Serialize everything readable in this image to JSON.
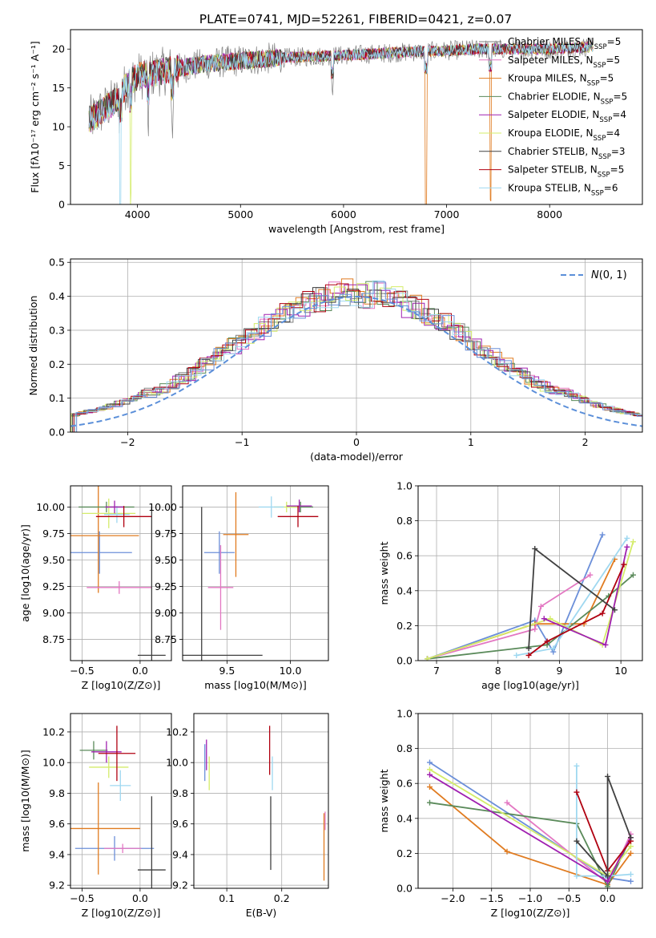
{
  "figure": {
    "title": "PLATE=0741, MJD=52261, FIBERID=0421, z=0.07"
  },
  "chart_data": [
    {
      "id": "spectrum",
      "type": "line",
      "xlabel": "wavelength [Angstrom, rest frame]",
      "ylabel_html": "Flux [fλ10⁻¹⁷ erg cm⁻² s⁻¹ A⁻¹]",
      "xlim": [
        3350,
        8900
      ],
      "ylim": [
        0,
        22.5
      ],
      "xticks": [
        4000,
        5000,
        6000,
        7000,
        8000
      ],
      "yticks": [
        0,
        5,
        10,
        15,
        20
      ],
      "grid": false,
      "legend_position": "top-right",
      "legend": [
        {
          "name": "Chabrier MILES, N",
          "sub": "SSP",
          "tail": "=5",
          "color": "#808080"
        },
        {
          "name": "Salpeter MILES, N",
          "sub": "SSP",
          "tail": "=5",
          "color": "#e377c2"
        },
        {
          "name": "Kroupa MILES, N",
          "sub": "SSP",
          "tail": "=5",
          "color": "#e07b20"
        },
        {
          "name": "Chabrier ELODIE, N",
          "sub": "SSP",
          "tail": "=5",
          "color": "#5a8a5a"
        },
        {
          "name": "Salpeter ELODIE, N",
          "sub": "SSP",
          "tail": "=4",
          "color": "#a020b0"
        },
        {
          "name": "Kroupa ELODIE, N",
          "sub": "SSP",
          "tail": "=4",
          "color": "#d4ec6a"
        },
        {
          "name": "Chabrier STELIB, N",
          "sub": "SSP",
          "tail": "=3",
          "color": "#404040"
        },
        {
          "name": "Salpeter STELIB, N",
          "sub": "SSP",
          "tail": "=5",
          "color": "#b00010"
        },
        {
          "name": "Kroupa STELIB, N",
          "sub": "SSP",
          "tail": "=6",
          "color": "#9fd8f0"
        }
      ],
      "continuum": {
        "x": [
          3550,
          3700,
          3800,
          3900,
          4000,
          4200,
          4400,
          4600,
          4800,
          5000,
          5300,
          5600,
          6000,
          6300,
          6600,
          7000,
          7300,
          7500,
          8000,
          8400
        ],
        "y": [
          11.0,
          12.5,
          13.5,
          15.5,
          16.5,
          17.0,
          17.5,
          18.0,
          18.3,
          18.5,
          18.8,
          19.0,
          19.2,
          19.4,
          19.6,
          19.8,
          20.0,
          20.0,
          20.0,
          20.3
        ]
      },
      "absorption_features": [
        {
          "x": 3835,
          "depth": 22.0,
          "color": "#9fd8f0"
        },
        {
          "x": 3934,
          "depth": 15.0,
          "color": "#d4ec6a"
        },
        {
          "x": 4102,
          "depth": 6.0,
          "color": "#808080"
        },
        {
          "x": 4340,
          "depth": 7.0,
          "color": "#808080"
        },
        {
          "x": 5890,
          "depth": 4.0,
          "color": "#808080"
        },
        {
          "x": 6800,
          "depth": 20.0,
          "color": "#e07b20"
        },
        {
          "x": 7425,
          "depth": 20.0,
          "color": "#e07b20"
        }
      ]
    },
    {
      "id": "residuals",
      "type": "histogram",
      "xlabel": "(data-model)/error",
      "ylabel": "Normed distribution",
      "xlim": [
        -2.5,
        2.5
      ],
      "ylim": [
        0,
        0.51
      ],
      "xticks": [
        -2,
        -1,
        0,
        1,
        2
      ],
      "yticks": [
        0.0,
        0.1,
        0.2,
        0.3,
        0.4,
        0.5
      ],
      "grid": true,
      "legend_position": "top-right",
      "legend": [
        {
          "name": "N(0,1)",
          "color": "#5b8fd9",
          "style": "dashed"
        }
      ],
      "bin_width": 0.1,
      "bin_start": -2.5,
      "series_colors": [
        "#808080",
        "#e377c2",
        "#e07b20",
        "#5a8a5a",
        "#a020b0",
        "#d4ec6a",
        "#404040",
        "#b00010",
        "#9fd8f0",
        "#6b8fd9"
      ],
      "gaussian": {
        "mean": 0,
        "sigma": 1
      }
    },
    {
      "id": "age-vs-Z",
      "type": "errorbar",
      "xlabel": "Z [log10(Z/Z⊙)]",
      "ylabel": "age  [log10(age/yr)]",
      "xlim": [
        -0.6,
        0.27
      ],
      "ylim": [
        8.55,
        10.2
      ],
      "xticks": [
        -0.5,
        0.0
      ],
      "yticks": [
        8.75,
        9.0,
        9.25,
        9.5,
        9.75,
        10.0
      ],
      "grid": true,
      "points": [
        {
          "x": -0.35,
          "y": 9.57,
          "xerr": 0.28,
          "yerr": 0.2,
          "color": "#6b8fd9"
        },
        {
          "x": -0.36,
          "y": 9.73,
          "xerr": 0.35,
          "yerr": 0.54,
          "color": "#e07b20"
        },
        {
          "x": -0.18,
          "y": 9.24,
          "xerr": 0.28,
          "yerr": 0.06,
          "color": "#e377c2"
        },
        {
          "x": -0.29,
          "y": 10.0,
          "xerr": 0.24,
          "yerr": 0.05,
          "color": "#5a8a5a"
        },
        {
          "x": -0.27,
          "y": 9.94,
          "xerr": 0.23,
          "yerr": 0.14,
          "color": "#d4ec6a"
        },
        {
          "x": -0.2,
          "y": 9.93,
          "xerr": 0.11,
          "yerr": 0.08,
          "color": "#9fd8f0"
        },
        {
          "x": -0.22,
          "y": 10.0,
          "xerr": 0.08,
          "yerr": 0.06,
          "color": "#a020b0"
        },
        {
          "x": -0.14,
          "y": 9.91,
          "xerr": 0.24,
          "yerr": 0.1,
          "color": "#b00010"
        },
        {
          "x": 0.1,
          "y": 8.6,
          "xerr": 0.12,
          "yerr": 1.4,
          "color": "#404040"
        }
      ]
    },
    {
      "id": "age-vs-mass",
      "type": "errorbar",
      "xlabel": "mass [log10(M/M⊙)]",
      "ylabel": "",
      "xlim": [
        9.15,
        10.3
      ],
      "ylim": [
        8.55,
        10.2
      ],
      "xticks": [
        9.5,
        10.0
      ],
      "yticks": [
        8.75,
        9.0,
        9.25,
        9.5,
        9.75,
        10.0
      ],
      "grid": true,
      "points": [
        {
          "x": 9.44,
          "y": 9.57,
          "xerr": 0.12,
          "yerr": 0.2,
          "color": "#6b8fd9"
        },
        {
          "x": 9.57,
          "y": 9.74,
          "xerr": 0.1,
          "yerr": 0.4,
          "color": "#e07b20"
        },
        {
          "x": 9.45,
          "y": 9.24,
          "xerr": 0.1,
          "yerr": 0.4,
          "color": "#e377c2"
        },
        {
          "x": 10.08,
          "y": 10.0,
          "xerr": 0.1,
          "yerr": 0.05,
          "color": "#5a8a5a"
        },
        {
          "x": 9.97,
          "y": 10.0,
          "xerr": 0.1,
          "yerr": 0.05,
          "color": "#d4ec6a"
        },
        {
          "x": 9.85,
          "y": 10.0,
          "xerr": 0.1,
          "yerr": 0.1,
          "color": "#9fd8f0"
        },
        {
          "x": 10.07,
          "y": 10.01,
          "xerr": 0.1,
          "yerr": 0.06,
          "color": "#a020b0"
        },
        {
          "x": 10.06,
          "y": 9.91,
          "xerr": 0.16,
          "yerr": 0.1,
          "color": "#b00010"
        },
        {
          "x": 9.3,
          "y": 8.6,
          "xerr": 0.48,
          "yerr": 1.4,
          "color": "#404040"
        }
      ]
    },
    {
      "id": "massweight-vs-age",
      "type": "line",
      "xlabel": "age  [log10(age/yr)]",
      "ylabel": "mass weight",
      "xlim": [
        6.7,
        10.35
      ],
      "ylim": [
        0,
        1.0
      ],
      "xticks": [
        7,
        8,
        9,
        10
      ],
      "yticks": [
        0.0,
        0.2,
        0.4,
        0.6,
        0.8,
        1.0
      ],
      "grid": true,
      "series": [
        {
          "color": "#6b8fd9",
          "x": [
            6.85,
            8.6,
            8.9,
            9.7
          ],
          "y": [
            0.01,
            0.23,
            0.05,
            0.72
          ]
        },
        {
          "color": "#e07b20",
          "x": [
            6.85,
            8.6,
            9.4,
            9.9
          ],
          "y": [
            0.01,
            0.21,
            0.21,
            0.58
          ]
        },
        {
          "color": "#e377c2",
          "x": [
            6.85,
            8.6,
            8.7,
            9.5
          ],
          "y": [
            0.01,
            0.18,
            0.31,
            0.49
          ]
        },
        {
          "color": "#5a8a5a",
          "x": [
            6.85,
            8.8,
            9.8,
            10.2
          ],
          "y": [
            0.01,
            0.09,
            0.37,
            0.49
          ]
        },
        {
          "color": "#d4ec6a",
          "x": [
            6.85,
            8.85,
            9.7,
            10.2
          ],
          "y": [
            0.01,
            0.24,
            0.09,
            0.68
          ]
        },
        {
          "color": "#9fd8f0",
          "x": [
            8.3,
            8.9,
            10.1
          ],
          "y": [
            0.03,
            0.07,
            0.7
          ]
        },
        {
          "color": "#a020b0",
          "x": [
            8.75,
            9.75,
            10.1
          ],
          "y": [
            0.24,
            0.09,
            0.65
          ]
        },
        {
          "color": "#b00010",
          "x": [
            8.5,
            8.8,
            9.7,
            10.05
          ],
          "y": [
            0.03,
            0.11,
            0.27,
            0.55
          ]
        },
        {
          "color": "#404040",
          "x": [
            8.5,
            8.6,
            9.9
          ],
          "y": [
            0.07,
            0.64,
            0.29
          ]
        }
      ]
    },
    {
      "id": "mass-vs-Z",
      "type": "errorbar",
      "xlabel": "Z [log10(Z/Z⊙)]",
      "ylabel": "mass [log10(M/M⊙)]",
      "xlim": [
        -0.6,
        0.27
      ],
      "ylim": [
        9.18,
        10.32
      ],
      "xticks": [
        -0.5,
        0.0
      ],
      "yticks": [
        9.2,
        9.4,
        9.6,
        9.8,
        10.0,
        10.2
      ],
      "grid": true,
      "points": [
        {
          "x": -0.22,
          "y": 9.44,
          "xerr": 0.34,
          "yerr": 0.08,
          "color": "#6b8fd9"
        },
        {
          "x": -0.15,
          "y": 9.44,
          "xerr": 0.16,
          "yerr": 0.03,
          "color": "#e377c2"
        },
        {
          "x": -0.36,
          "y": 9.57,
          "xerr": 0.36,
          "yerr": 0.3,
          "color": "#e07b20"
        },
        {
          "x": -0.4,
          "y": 10.08,
          "xerr": 0.12,
          "yerr": 0.06,
          "color": "#5a8a5a"
        },
        {
          "x": -0.27,
          "y": 9.97,
          "xerr": 0.17,
          "yerr": 0.07,
          "color": "#d4ec6a"
        },
        {
          "x": -0.29,
          "y": 10.07,
          "xerr": 0.13,
          "yerr": 0.07,
          "color": "#a020b0"
        },
        {
          "x": -0.2,
          "y": 10.06,
          "xerr": 0.16,
          "yerr": 0.18,
          "color": "#b00010"
        },
        {
          "x": -0.17,
          "y": 9.85,
          "xerr": 0.09,
          "yerr": 0.1,
          "color": "#9fd8f0"
        },
        {
          "x": 0.1,
          "y": 9.3,
          "xerr": 0.12,
          "yerr": 0.48,
          "color": "#404040"
        }
      ]
    },
    {
      "id": "mass-vs-EBV",
      "type": "errorbar",
      "xlabel": "E(B-V)",
      "ylabel": "",
      "xlim": [
        0.04,
        0.285
      ],
      "ylim": [
        9.18,
        10.32
      ],
      "xticks": [
        0.1,
        0.2
      ],
      "yticks": [
        9.2,
        9.4,
        9.6,
        9.8,
        10.0,
        10.2
      ],
      "grid": true,
      "points": [
        {
          "x": 0.06,
          "y": 10.0,
          "xerr": 0.0,
          "yerr": 0.12,
          "color": "#6b8fd9"
        },
        {
          "x": 0.063,
          "y": 10.05,
          "xerr": 0.0,
          "yerr": 0.1,
          "color": "#a020b0"
        },
        {
          "x": 0.068,
          "y": 9.93,
          "xerr": 0.0,
          "yerr": 0.11,
          "color": "#d4ec6a"
        },
        {
          "x": 0.178,
          "y": 10.08,
          "xerr": 0.0,
          "yerr": 0.16,
          "color": "#b00010"
        },
        {
          "x": 0.183,
          "y": 9.93,
          "xerr": 0.0,
          "yerr": 0.11,
          "color": "#9fd8f0"
        },
        {
          "x": 0.18,
          "y": 9.54,
          "xerr": 0.0,
          "yerr": 0.24,
          "color": "#404040"
        },
        {
          "x": 0.277,
          "y": 9.45,
          "xerr": 0.0,
          "yerr": 0.22,
          "color": "#e07b20"
        },
        {
          "x": 0.279,
          "y": 9.62,
          "xerr": 0.0,
          "yerr": 0.06,
          "color": "#e377c2"
        }
      ]
    },
    {
      "id": "massweight-vs-Z",
      "type": "line",
      "xlabel": "Z [log10(Z/Z⊙)]",
      "ylabel": "mass weight",
      "xlim": [
        -2.45,
        0.45
      ],
      "ylim": [
        0,
        1.0
      ],
      "xticks": [
        -2.0,
        -1.5,
        -1.0,
        -0.5,
        0.0
      ],
      "yticks": [
        0.0,
        0.2,
        0.4,
        0.6,
        0.8,
        1.0
      ],
      "grid": true,
      "series": [
        {
          "color": "#6b8fd9",
          "x": [
            -2.3,
            0.0,
            0.3
          ],
          "y": [
            0.72,
            0.06,
            0.04
          ]
        },
        {
          "color": "#e07b20",
          "x": [
            -2.3,
            -1.3,
            0.0,
            0.3
          ],
          "y": [
            0.58,
            0.21,
            0.02,
            0.2
          ]
        },
        {
          "color": "#e377c2",
          "x": [
            -1.3,
            0.0,
            0.3
          ],
          "y": [
            0.49,
            0.03,
            0.31
          ]
        },
        {
          "color": "#5a8a5a",
          "x": [
            -2.3,
            -0.4,
            0.0,
            0.3
          ],
          "y": [
            0.49,
            0.37,
            0.01,
            0.29
          ]
        },
        {
          "color": "#d4ec6a",
          "x": [
            -2.3,
            0.0,
            0.3
          ],
          "y": [
            0.68,
            0.07,
            0.24
          ]
        },
        {
          "color": "#9fd8f0",
          "x": [
            -0.4,
            -0.4,
            0.0,
            0.3
          ],
          "y": [
            0.7,
            0.07,
            0.07,
            0.08
          ]
        },
        {
          "color": "#a020b0",
          "x": [
            -2.3,
            0.0,
            0.3
          ],
          "y": [
            0.65,
            0.04,
            0.29
          ]
        },
        {
          "color": "#b00010",
          "x": [
            -0.4,
            0.0,
            0.3
          ],
          "y": [
            0.55,
            0.1,
            0.27
          ]
        },
        {
          "color": "#404040",
          "x": [
            -0.4,
            0.0,
            0.0,
            0.3
          ],
          "y": [
            0.27,
            0.07,
            0.64,
            0.29
          ]
        }
      ]
    }
  ]
}
